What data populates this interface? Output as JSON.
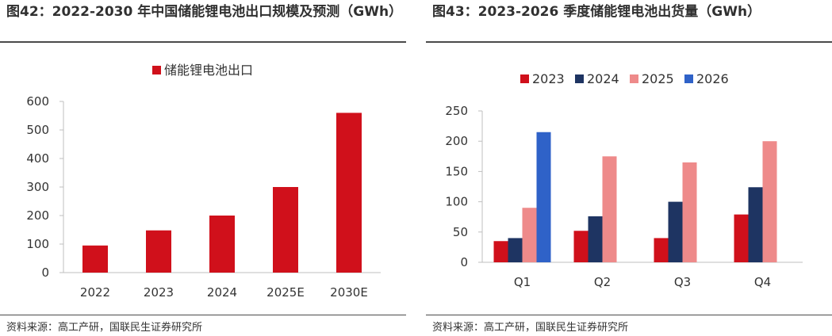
{
  "chart_data": [
    {
      "type": "bar",
      "title": "图42：2022-2030 年中国储能锂电池出口规模及预测（GWh）",
      "categories": [
        "2022",
        "2023",
        "2024",
        "2025E",
        "2030E"
      ],
      "series": [
        {
          "name": "储能锂电池出口",
          "values": [
            95,
            148,
            200,
            300,
            560
          ],
          "color": "#d0101b"
        }
      ],
      "ylim": [
        0,
        600
      ],
      "yticks": [
        0,
        100,
        200,
        300,
        400,
        500,
        600
      ],
      "legend": "top",
      "grid": false,
      "source": "资料来源：高工产研，国联民生证券研究所"
    },
    {
      "type": "bar",
      "title": "图43：2023-2026 季度储能锂电池出货量（GWh）",
      "categories": [
        "Q1",
        "Q2",
        "Q3",
        "Q4"
      ],
      "series": [
        {
          "name": "2023",
          "values": [
            35,
            52,
            40,
            79
          ],
          "color": "#d0101b"
        },
        {
          "name": "2024",
          "values": [
            40,
            76,
            100,
            124
          ],
          "color": "#1e3462"
        },
        {
          "name": "2025",
          "values": [
            90,
            175,
            165,
            200
          ],
          "color": "#ee8a8a"
        },
        {
          "name": "2026",
          "values": [
            215,
            null,
            null,
            null
          ],
          "color": "#2f62c8"
        }
      ],
      "ylim": [
        0,
        250
      ],
      "yticks": [
        0,
        50,
        100,
        150,
        200,
        250
      ],
      "legend": "top",
      "grid": false,
      "source": "资料来源：高工产研，国联民生证券研究所"
    }
  ]
}
